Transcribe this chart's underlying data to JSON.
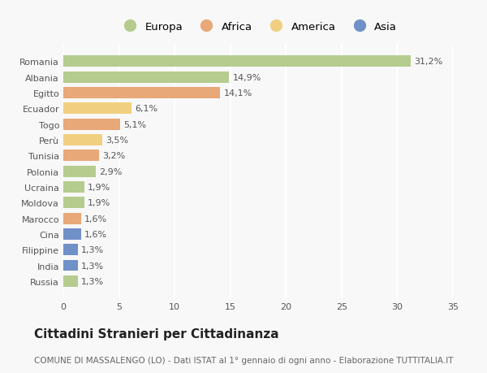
{
  "countries": [
    "Romania",
    "Albania",
    "Egitto",
    "Ecuador",
    "Togo",
    "Perù",
    "Tunisia",
    "Polonia",
    "Ucraina",
    "Moldova",
    "Marocco",
    "Cina",
    "Filippine",
    "India",
    "Russia"
  ],
  "values": [
    31.2,
    14.9,
    14.1,
    6.1,
    5.1,
    3.5,
    3.2,
    2.9,
    1.9,
    1.9,
    1.6,
    1.6,
    1.3,
    1.3,
    1.3
  ],
  "labels": [
    "31,2%",
    "14,9%",
    "14,1%",
    "6,1%",
    "5,1%",
    "3,5%",
    "3,2%",
    "2,9%",
    "1,9%",
    "1,9%",
    "1,6%",
    "1,6%",
    "1,3%",
    "1,3%",
    "1,3%"
  ],
  "continents": [
    "Europa",
    "Europa",
    "Africa",
    "America",
    "Africa",
    "America",
    "Africa",
    "Europa",
    "Europa",
    "Europa",
    "Africa",
    "Asia",
    "Asia",
    "Asia",
    "Europa"
  ],
  "colors": {
    "Europa": "#b5cc8e",
    "Africa": "#e8a878",
    "America": "#f0d080",
    "Asia": "#7090c8"
  },
  "xlim": [
    0,
    35
  ],
  "xticks": [
    0,
    5,
    10,
    15,
    20,
    25,
    30,
    35
  ],
  "background_color": "#f8f8f8",
  "title": "Cittadini Stranieri per Cittadinanza",
  "subtitle": "COMUNE DI MASSALENGO (LO) - Dati ISTAT al 1° gennaio di ogni anno - Elaborazione TUTTITALIA.IT",
  "grid_color": "#ffffff",
  "bar_height": 0.72,
  "label_fontsize": 8,
  "tick_fontsize": 8,
  "title_fontsize": 11,
  "subtitle_fontsize": 7.5,
  "legend_order": [
    "Europa",
    "Africa",
    "America",
    "Asia"
  ]
}
